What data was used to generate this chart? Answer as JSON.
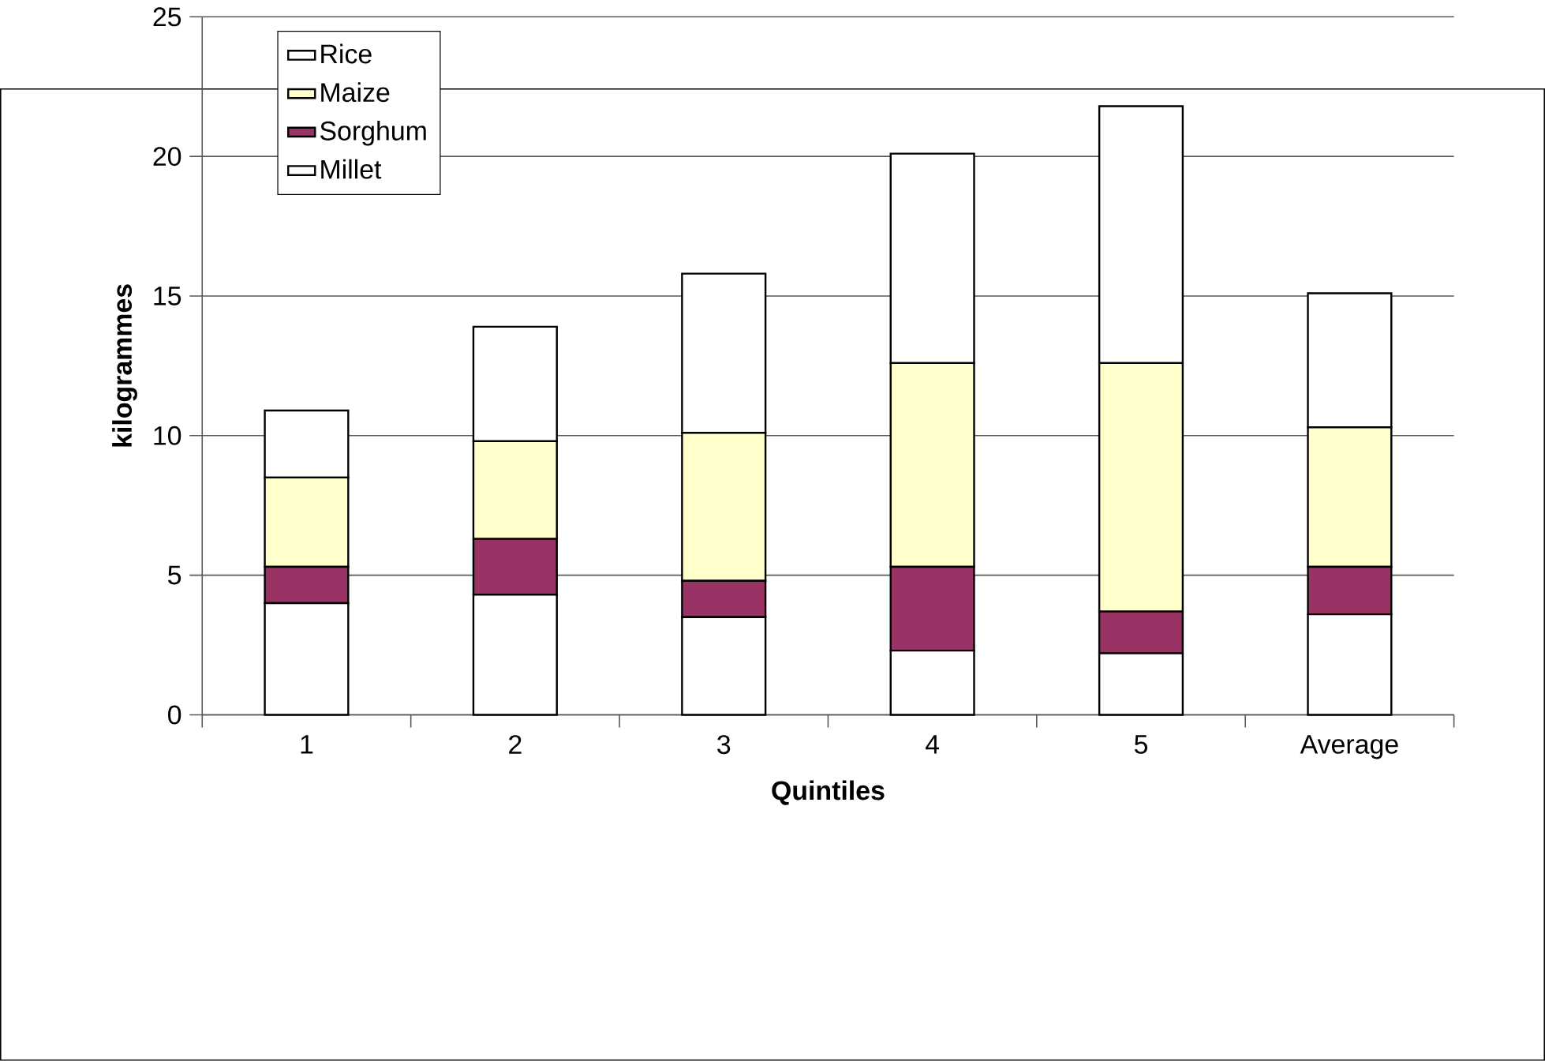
{
  "chart_data": {
    "type": "bar",
    "stacked": true,
    "xlabel": "Quintiles",
    "ylabel": "kilogrammes",
    "categories": [
      "1",
      "2",
      "3",
      "4",
      "5",
      "Average"
    ],
    "series": [
      {
        "name": "Millet",
        "color": "#ffffff",
        "values": [
          4.0,
          4.3,
          3.5,
          2.3,
          2.2,
          3.6
        ]
      },
      {
        "name": "Sorghum",
        "color": "#993366",
        "values": [
          1.3,
          2.0,
          1.3,
          3.0,
          1.5,
          1.7
        ]
      },
      {
        "name": "Maize",
        "color": "#ffffcc",
        "values": [
          3.2,
          3.5,
          5.3,
          7.3,
          8.9,
          5.0
        ]
      },
      {
        "name": "Rice",
        "color": "#ffffff",
        "values": [
          2.4,
          4.1,
          5.7,
          7.5,
          9.2,
          4.8
        ]
      }
    ],
    "ylim": [
      0,
      25
    ],
    "yticks": [
      0,
      5,
      10,
      15,
      20,
      25
    ],
    "grid": "y",
    "legend": "top left"
  }
}
